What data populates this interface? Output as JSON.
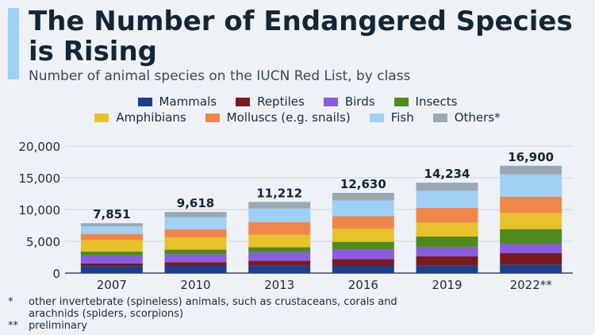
{
  "header": {
    "title": "The Number of Endangered Species is Rising",
    "subtitle": "Number of animal species on the IUCN Red List, by class"
  },
  "colors": {
    "Mammals": "#1f3e8c",
    "Reptiles": "#7a1a1f",
    "Birds": "#8a5ce0",
    "Insects": "#4f8a1e",
    "Amphibians": "#e8c22a",
    "Molluscs (e.g. snails)": "#f0874a",
    "Fish": "#9fd0f5",
    "Others*": "#9aa8b2"
  },
  "chart_data": {
    "type": "bar",
    "stacked": true,
    "categories": [
      "2007",
      "2010",
      "2013",
      "2016",
      "2019",
      "2022**"
    ],
    "series": [
      {
        "name": "Mammals",
        "values": [
          1100,
          1130,
          1140,
          1190,
          1240,
          1340
        ]
      },
      {
        "name": "Reptiles",
        "values": [
          440,
          590,
          820,
          1010,
          1410,
          1830
        ]
      },
      {
        "name": "Birds",
        "values": [
          1220,
          1240,
          1310,
          1460,
          1480,
          1400
        ]
      },
      {
        "name": "Insects",
        "values": [
          620,
          740,
          790,
          1260,
          1620,
          2350
        ]
      },
      {
        "name": "Amphibians",
        "values": [
          1810,
          1910,
          1990,
          2070,
          2200,
          2570
        ]
      },
      {
        "name": "Molluscs (e.g. snails)",
        "values": [
          980,
          1290,
          1950,
          1950,
          2300,
          2550
        ]
      },
      {
        "name": "Fish",
        "values": [
          1200,
          1900,
          2170,
          2500,
          2700,
          3500
        ]
      },
      {
        "name": "Others*",
        "values": [
          481,
          818,
          1042,
          1190,
          1284,
          1360
        ]
      }
    ],
    "totals": [
      "7,851",
      "9,618",
      "11,212",
      "12,630",
      "14,234",
      "16,900"
    ],
    "yticks": [
      "0",
      "5,000",
      "10,000",
      "15,000",
      "20,000"
    ],
    "ylim": [
      0,
      20000
    ],
    "grid": true,
    "legend_position": "top"
  },
  "footnotes": [
    {
      "symbol": "*",
      "text": "other invertebrate (spineless) animals, such as crustaceans, corals and"
    },
    {
      "symbol": "",
      "text": "arachnids (spiders, scorpions)"
    },
    {
      "symbol": "**",
      "text": "preliminary"
    }
  ]
}
